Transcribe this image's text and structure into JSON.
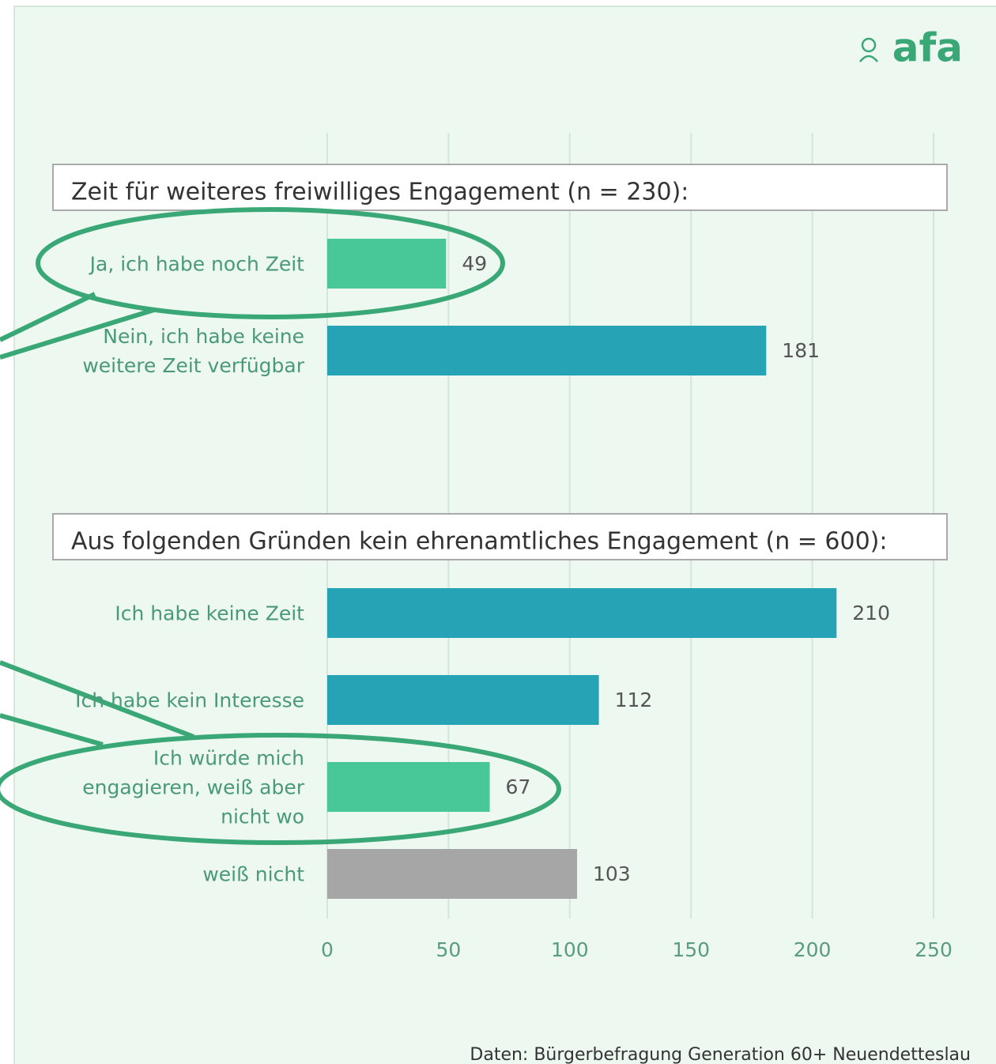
{
  "chart_data": {
    "type": "barh",
    "logo": "afa",
    "xlim": [
      0,
      250
    ],
    "xticks": [
      0,
      50,
      100,
      150,
      200,
      250
    ],
    "grid": true,
    "groups": [
      {
        "title": "Zeit für weiteres freiwilliges Engagement (n = 230):",
        "categories": [
          "Ja, ich habe noch Zeit",
          "Nein, ich habe keine weitere Zeit verfügbar"
        ],
        "values": [
          49,
          181
        ],
        "colors": [
          "#48c799",
          "#26a3b4"
        ]
      },
      {
        "title": "Aus folgenden Gründen kein ehrenamtliches Engagement (n = 600):",
        "categories": [
          "Ich habe keine Zeit",
          "Ich habe kein Interesse",
          "Ich würde mich engagieren, weiß aber nicht wo",
          "weiß nicht"
        ],
        "values": [
          210,
          112,
          67,
          103
        ],
        "colors": [
          "#26a3b4",
          "#26a3b4",
          "#48c799",
          "#a6a6a6"
        ]
      }
    ],
    "source": "Daten: Bürgerbefragung Generation 60+ Neuendetteslau"
  }
}
